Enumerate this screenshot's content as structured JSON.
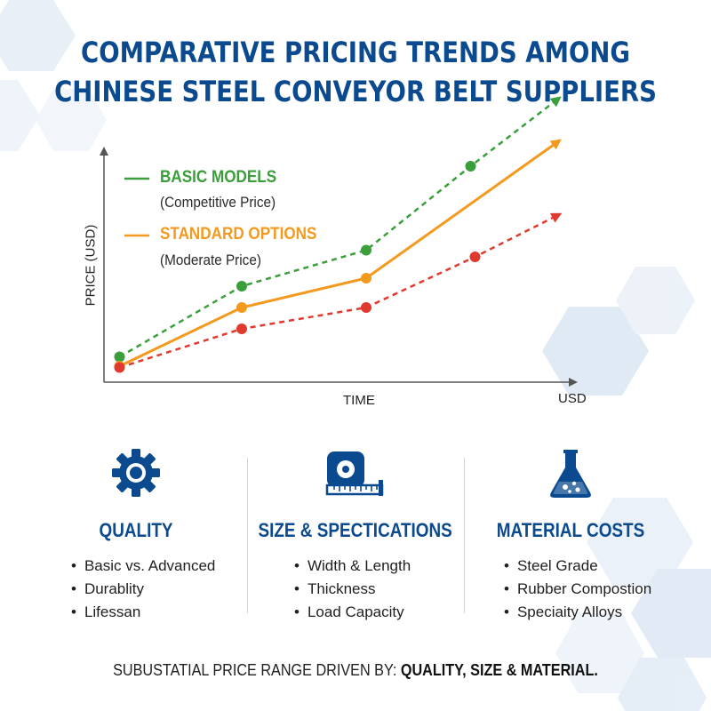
{
  "title": {
    "line1": "COMPARATIVE PRICING TRENDS  AMONG",
    "line2": "CHINESE STEEL CONVEYOR BELT SUPPLIERS"
  },
  "colors": {
    "title": "#0b4a8f",
    "green": "#3a9e3a",
    "orange": "#f39a1e",
    "red": "#e03a2f",
    "axis": "#555555",
    "icon": "#0b4a8f"
  },
  "chart_data": {
    "type": "line",
    "title": "COMPARATIVE PRICING TRENDS  AMONG CHINESE STEEL CONVEYOR BELT SUPPLIERS",
    "xlabel": "TIME",
    "ylabel": "PRICE (USD)",
    "x_axis_end_label": "USD",
    "grid": false,
    "legend_placement": "top-left",
    "xlim": [
      0,
      10
    ],
    "ylim": [
      0,
      10
    ],
    "series": [
      {
        "name": "BASIC MODELS",
        "note": "(Competitive Price)",
        "color": "#3a9e3a",
        "style": "dashed",
        "x": [
          0.35,
          3.1,
          5.9,
          8.25
        ],
        "y": [
          0.95,
          3.6,
          4.95,
          8.1
        ],
        "end": [
          10.2,
          10.6
        ]
      },
      {
        "name": "STANDARD OPTIONS",
        "note": "(Moderate Price)",
        "color": "#f39a1e",
        "style": "solid",
        "x": [
          0.35,
          3.1,
          5.9
        ],
        "y": [
          0.6,
          2.8,
          3.9
        ],
        "end": [
          10.2,
          9.0
        ]
      },
      {
        "name": "",
        "color": "#e03a2f",
        "style": "dashed",
        "x": [
          0.35,
          3.1,
          5.9,
          8.35
        ],
        "y": [
          0.55,
          2.0,
          2.8,
          4.7
        ],
        "end": [
          10.2,
          6.25
        ]
      }
    ]
  },
  "factors": [
    {
      "icon": "gear-icon",
      "title": "QUALITY",
      "items": [
        "Basic vs. Advanced",
        "Durablity",
        "Lifessan"
      ]
    },
    {
      "icon": "tape-measure-icon",
      "title": "SIZE & SPECTICATIONS",
      "items": [
        "Width & Length",
        "Thickness",
        "Load Capacity"
      ]
    },
    {
      "icon": "flask-icon",
      "title": "MATERIAL COSTS",
      "items": [
        "Steel Grade",
        "Rubber Compostion",
        "Speciaity Alloys"
      ]
    }
  ],
  "footer": {
    "prefix": "SUBUSTATIAL PRICE RANGE DRIVEN BY: ",
    "emphasis": "QUALITY, SIZE & MATERIAL."
  }
}
